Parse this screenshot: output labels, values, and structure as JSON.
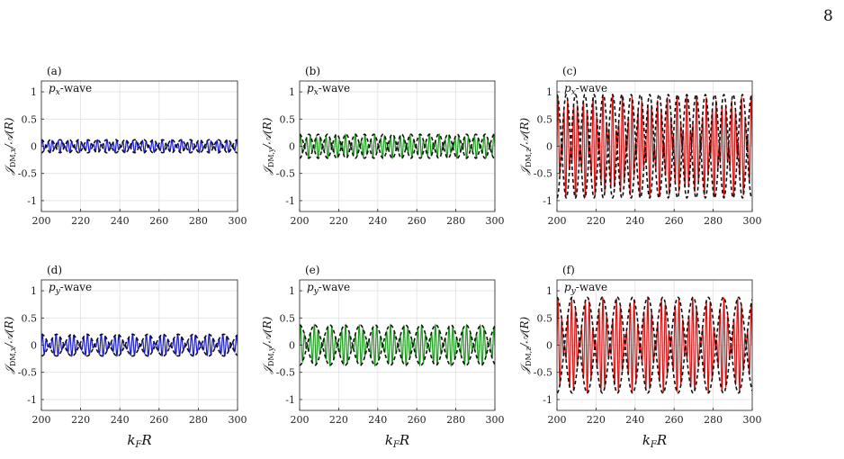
{
  "page_number": "8",
  "chart_data": [
    {
      "panel_label": "(a)",
      "wave_label": "px-wave",
      "type": "line",
      "xlabel": "",
      "ylabel": "𝒥DM,x/𝒜(R)",
      "xlim": [
        200,
        300
      ],
      "ylim": [
        -1.2,
        1.2
      ],
      "xticks": [
        200,
        220,
        240,
        260,
        280,
        300
      ],
      "yticks": [
        -1,
        -0.5,
        0,
        0.5,
        1
      ],
      "series": [
        {
          "color": "#1a1ad6",
          "amplitude": 0.12,
          "period": 2.0,
          "beat_period": 9.5,
          "envelope_phase": 0.0
        }
      ]
    },
    {
      "panel_label": "(b)",
      "wave_label": "px-wave",
      "type": "line",
      "xlabel": "",
      "ylabel": "𝒥DM,y/𝒜(R)",
      "xlim": [
        200,
        300
      ],
      "ylim": [
        -1.2,
        1.2
      ],
      "xticks": [
        200,
        220,
        240,
        260,
        280,
        300
      ],
      "yticks": [
        -1,
        -0.5,
        0,
        0.5,
        1
      ],
      "series": [
        {
          "color": "#1e9b1e",
          "amplitude": 0.22,
          "period": 2.0,
          "beat_period": 9.5,
          "envelope_phase": 0.0
        }
      ]
    },
    {
      "panel_label": "(c)",
      "wave_label": "px-wave",
      "type": "line",
      "xlabel": "",
      "ylabel": "𝒥DM,z/𝒜(R)",
      "xlim": [
        200,
        300
      ],
      "ylim": [
        -1.2,
        1.2
      ],
      "xticks": [
        200,
        220,
        240,
        260,
        280,
        300
      ],
      "yticks": [
        -1,
        -0.5,
        0,
        0.5,
        1
      ],
      "series": [
        {
          "color": "#e01010",
          "amplitude": 0.95,
          "period": 2.0,
          "beat_period": 9.5,
          "envelope_phase": 0.0
        }
      ]
    },
    {
      "panel_label": "(d)",
      "wave_label": "py-wave",
      "type": "line",
      "xlabel": "kFR",
      "ylabel": "𝒥DM,x/𝒜(R)",
      "xlim": [
        200,
        300
      ],
      "ylim": [
        -1.2,
        1.2
      ],
      "xticks": [
        200,
        220,
        240,
        260,
        280,
        300
      ],
      "yticks": [
        -1,
        -0.5,
        0,
        0.5,
        1
      ],
      "series": [
        {
          "color": "#1a1ad6",
          "amplitude": 0.2,
          "period": 2.0,
          "beat_period": 15.5,
          "envelope_phase": 0.0
        }
      ]
    },
    {
      "panel_label": "(e)",
      "wave_label": "py-wave",
      "type": "line",
      "xlabel": "kFR",
      "ylabel": "𝒥DM,y/𝒜(R)",
      "xlim": [
        200,
        300
      ],
      "ylim": [
        -1.2,
        1.2
      ],
      "xticks": [
        200,
        220,
        240,
        260,
        280,
        300
      ],
      "yticks": [
        -1,
        -0.5,
        0,
        0.5,
        1
      ],
      "series": [
        {
          "color": "#1e9b1e",
          "amplitude": 0.37,
          "period": 2.0,
          "beat_period": 15.5,
          "envelope_phase": 0.0
        }
      ]
    },
    {
      "panel_label": "(f)",
      "wave_label": "py-wave",
      "type": "line",
      "xlabel": "kFR",
      "ylabel": "𝒥DM,z/𝒜(R)",
      "xlim": [
        200,
        300
      ],
      "ylim": [
        -1.2,
        1.2
      ],
      "xticks": [
        200,
        220,
        240,
        260,
        280,
        300
      ],
      "yticks": [
        -1,
        -0.5,
        0,
        0.5,
        1
      ],
      "series": [
        {
          "color": "#e01010",
          "amplitude": 0.88,
          "period": 2.0,
          "beat_period": 15.5,
          "envelope_phase": 0.0
        }
      ]
    }
  ]
}
